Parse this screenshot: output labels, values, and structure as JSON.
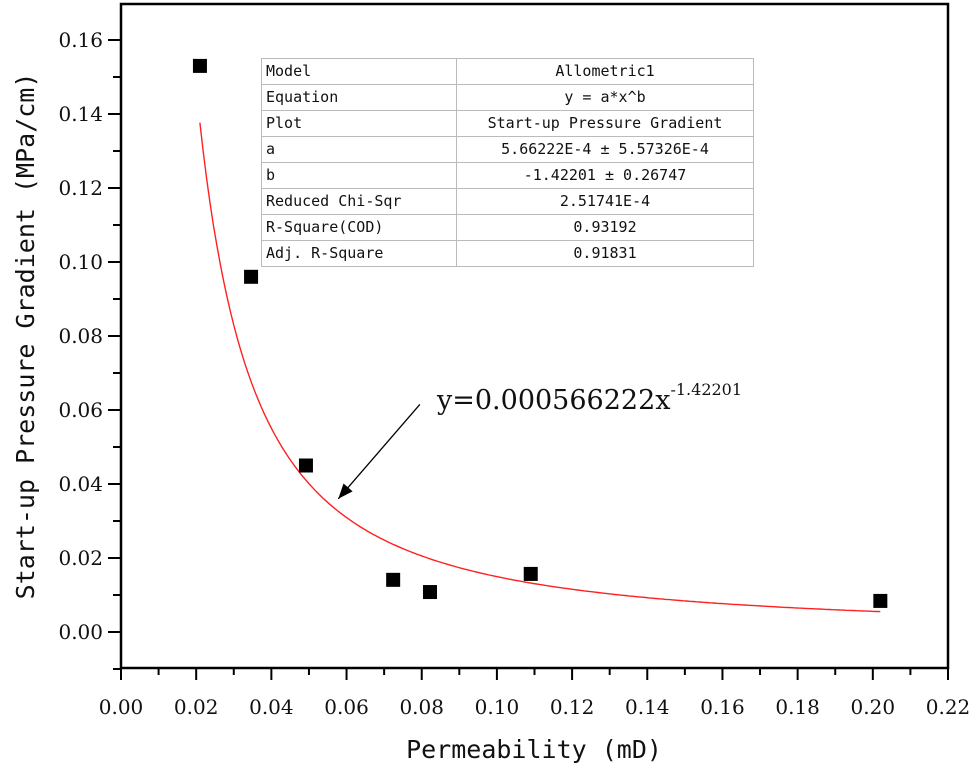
{
  "chart_data": {
    "type": "scatter",
    "title": "",
    "xlabel": "Permeability (mD)",
    "ylabel": "Start-up Pressure Gradient (MPa/cm)",
    "xlim": [
      0.0,
      0.22
    ],
    "ylim": [
      -0.01,
      0.17
    ],
    "x_ticks": [
      "0.00",
      "0.02",
      "0.04",
      "0.06",
      "0.08",
      "0.10",
      "0.12",
      "0.14",
      "0.16",
      "0.18",
      "0.20",
      "0.22"
    ],
    "y_ticks": [
      "0.00",
      "0.02",
      "0.04",
      "0.06",
      "0.08",
      "0.10",
      "0.12",
      "0.14",
      "0.16"
    ],
    "grid": false,
    "series": [
      {
        "name": "Start-up Pressure Gradient",
        "kind": "scatter",
        "marker": "square",
        "color": "#000000",
        "x": [
          0.021,
          0.0346,
          0.0492,
          0.0724,
          0.0822,
          0.109,
          0.202
        ],
        "y": [
          0.153,
          0.096,
          0.045,
          0.0141,
          0.0108,
          0.0157,
          0.0084
        ]
      },
      {
        "name": "Allometric1 fit",
        "kind": "line",
        "color": "#ff2020",
        "equation": "y = a*x^b",
        "a": 0.000566222,
        "b": -1.42201,
        "x_range": [
          0.021,
          0.202
        ]
      }
    ],
    "annotation": {
      "text_base": "y=0.000566222x",
      "text_exponent": "-1.42201",
      "arrow_from": [
        0.0795,
        0.0615
      ],
      "arrow_to": [
        0.0578,
        0.036
      ]
    },
    "fit_table": [
      {
        "key": "Model",
        "value": "Allometric1"
      },
      {
        "key": "Equation",
        "value": "y = a*x^b"
      },
      {
        "key": "Plot",
        "value": "Start-up Pressure Gradient"
      },
      {
        "key": "a",
        "value": "5.66222E-4 ± 5.57326E-4"
      },
      {
        "key": "b",
        "value": "-1.42201 ± 0.26747"
      },
      {
        "key": "Reduced Chi-Sqr",
        "value": "2.51741E-4"
      },
      {
        "key": "R-Square(COD)",
        "value": "0.93192"
      },
      {
        "key": "Adj. R-Square",
        "value": "0.91831"
      }
    ]
  }
}
